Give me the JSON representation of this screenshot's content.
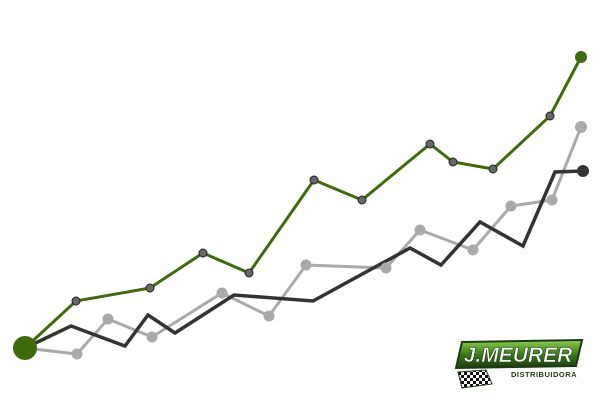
{
  "chart_data": {
    "type": "line",
    "title": "",
    "xlabel": "",
    "ylabel": "",
    "grid": false,
    "legend": "none",
    "series": [
      {
        "color": "#3e6b0c",
        "marker": "circle-dark",
        "points": [
          [
            25,
            348
          ],
          [
            76,
            301
          ],
          [
            150,
            288
          ],
          [
            203,
            253
          ],
          [
            249,
            273
          ],
          [
            314,
            180
          ],
          [
            362,
            200
          ],
          [
            430,
            144
          ],
          [
            453,
            162
          ],
          [
            493,
            169
          ],
          [
            550,
            116
          ],
          [
            581,
            57
          ]
        ]
      },
      {
        "color": "#aaaaaa",
        "marker": "circle-grey",
        "points": [
          [
            25,
            348
          ],
          [
            77,
            354
          ],
          [
            108,
            319
          ],
          [
            152,
            337
          ],
          [
            222,
            293
          ],
          [
            269,
            316
          ],
          [
            306,
            265
          ],
          [
            386,
            268
          ],
          [
            420,
            230
          ],
          [
            473,
            250
          ],
          [
            511,
            206
          ],
          [
            552,
            200
          ],
          [
            581,
            127
          ]
        ]
      },
      {
        "color": "#333333",
        "marker": "none-except-last",
        "points": [
          [
            25,
            348
          ],
          [
            71,
            326
          ],
          [
            125,
            346
          ],
          [
            148,
            315
          ],
          [
            175,
            333
          ],
          [
            234,
            295
          ],
          [
            313,
            301
          ],
          [
            410,
            248
          ],
          [
            441,
            265
          ],
          [
            480,
            222
          ],
          [
            523,
            246
          ],
          [
            555,
            172
          ],
          [
            583,
            171
          ]
        ]
      }
    ],
    "start_marker_color": "#3e6b0c"
  },
  "logo": {
    "brand": "J.MEURER",
    "tagline": "DISTRIBUIDORA",
    "colors": {
      "green": "#3a7d1e",
      "dark": "#1d3a10",
      "light": "#8fd14f"
    }
  }
}
